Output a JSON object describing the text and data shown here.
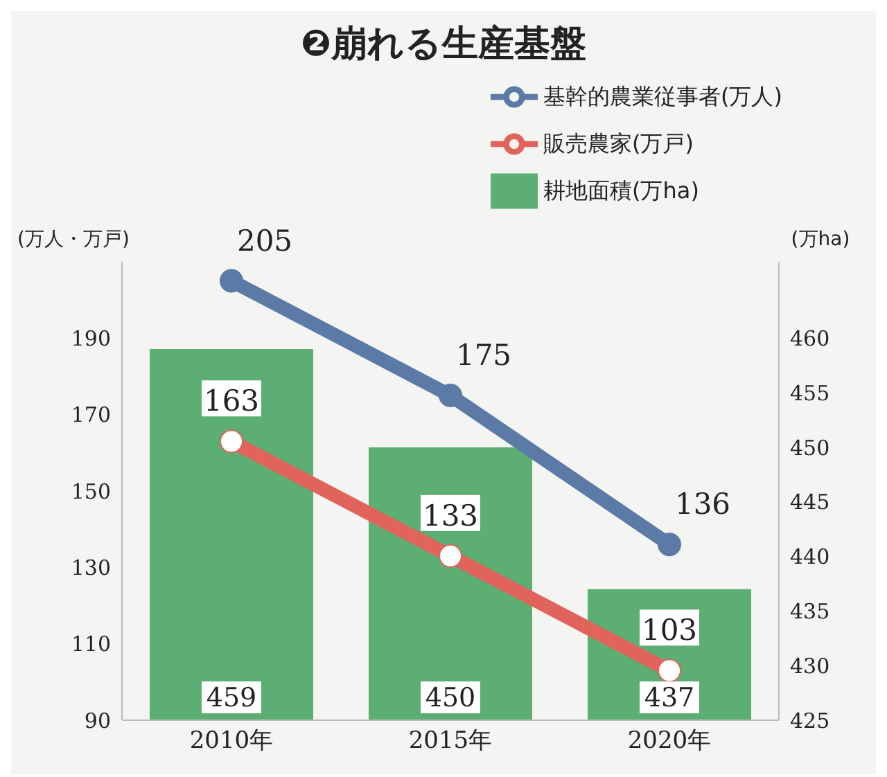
{
  "chart_data": {
    "type": "bar",
    "title": "❷崩れる生産基盤",
    "ylabel": "(万人・万戸)",
    "y2label": "(万ha)",
    "categories": [
      "2010年",
      "2015年",
      "2020年"
    ],
    "series": [
      {
        "name": "基幹的農業従事者(万人)",
        "type": "line",
        "color": "#5b7aa6",
        "values": [
          205,
          175,
          136
        ]
      },
      {
        "name": "販売農家(万戸)",
        "type": "line",
        "color": "#e0645c",
        "values": [
          163,
          133,
          103
        ]
      },
      {
        "name": "耕地面積(万ha)",
        "type": "bar",
        "axis": "y2",
        "color": "#5cae72",
        "values": [
          459,
          450,
          437
        ]
      }
    ],
    "ylim": [
      90,
      210
    ],
    "yticks": [
      90,
      110,
      130,
      150,
      170,
      190
    ],
    "y2lim": [
      425,
      467
    ],
    "y2ticks": [
      425,
      430,
      435,
      440,
      445,
      450,
      455,
      460
    ],
    "data_labels": true,
    "legend": "top right",
    "marker": "circle",
    "grid": false
  }
}
